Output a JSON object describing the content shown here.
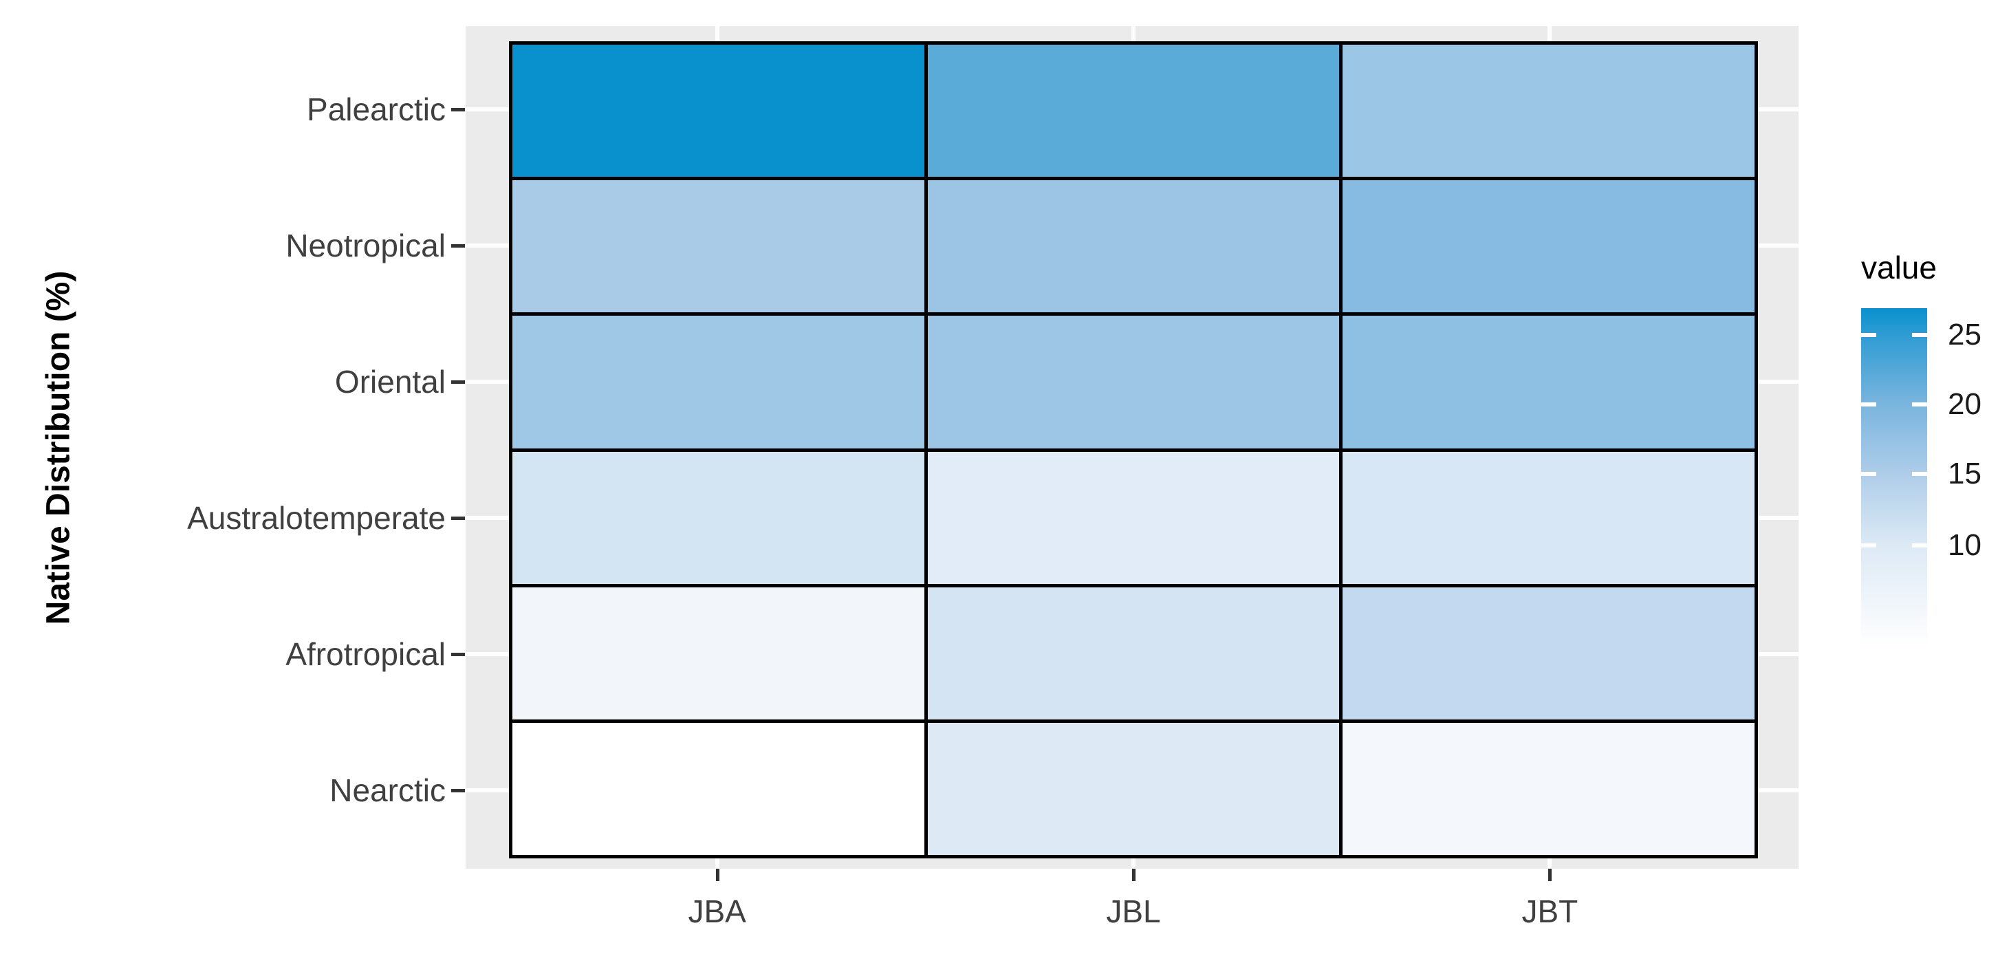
{
  "chart_data": {
    "type": "heatmap",
    "title": "",
    "xlabel": "",
    "ylabel": "Native Distribution (%)",
    "x_categories": [
      "JBA",
      "JBL",
      "JBT"
    ],
    "y_categories": [
      "Palearctic",
      "Neotropical",
      "Oriental",
      "Australotemperate",
      "Afrotropical",
      "Nearctic"
    ],
    "values": [
      [
        27,
        21,
        17
      ],
      [
        16,
        17,
        19
      ],
      [
        17,
        17,
        18
      ],
      [
        12,
        10,
        11
      ],
      [
        6,
        12,
        14
      ],
      [
        3,
        10,
        5
      ]
    ],
    "cell_colors": [
      [
        "#0991ce",
        "#5aabd8",
        "#9cc6e6"
      ],
      [
        "#a9cbe8",
        "#9cc5e5",
        "#88bbe1"
      ],
      [
        "#9fc7e6",
        "#9dc6e6",
        "#8ec0e3"
      ],
      [
        "#d3e4f3",
        "#e1ecf8",
        "#d8e7f5"
      ],
      [
        "#f2f6fb",
        "#d4e4f3",
        "#c2d9ef"
      ],
      [
        "#ffffff",
        "#ddeaf6",
        "#f4f7fb"
      ]
    ],
    "legend": {
      "title": "value",
      "tick_labels": [
        "25",
        "20",
        "15",
        "10"
      ],
      "value_range": [
        3,
        27
      ],
      "high_color": "#0991ce",
      "low_color": "#ffffff",
      "position": "right"
    },
    "grid": true,
    "panel_background": "#ebebeb",
    "tile_border_color": "#000000",
    "axis_text_color": "#404040"
  }
}
